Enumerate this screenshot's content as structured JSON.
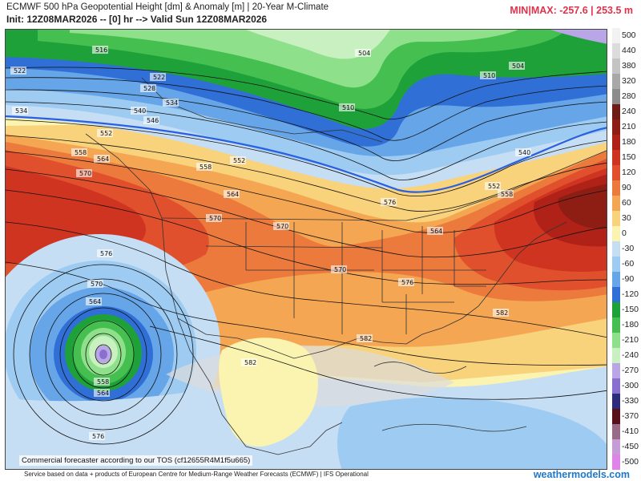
{
  "header": {
    "title": "ECMWF 500 hPa Geopotential Height [dm] & Anomaly [m] | 20-Year M-Climate",
    "subtitle": "Init: 12Z08MAR2026 -- [0] hr --> Valid Sun 12Z08MAR2026",
    "minmax": "MIN|MAX: -257.6 | 253.5 m"
  },
  "legend": [
    {
      "label": "500",
      "color": "#f2f2f2"
    },
    {
      "label": "440",
      "color": "#dcdcdc"
    },
    {
      "label": "380",
      "color": "#c4c4c4"
    },
    {
      "label": "320",
      "color": "#a8a8a8"
    },
    {
      "label": "280",
      "color": "#8c8c8c"
    },
    {
      "label": "240",
      "color": "#6e1c14"
    },
    {
      "label": "210",
      "color": "#8e1d14"
    },
    {
      "label": "180",
      "color": "#b02218"
    },
    {
      "label": "150",
      "color": "#cf3420"
    },
    {
      "label": "120",
      "color": "#e0502c"
    },
    {
      "label": "90",
      "color": "#ec7a3c"
    },
    {
      "label": "60",
      "color": "#f4a652"
    },
    {
      "label": "30",
      "color": "#f9d27c"
    },
    {
      "label": "0",
      "color": "#fbf3b0"
    },
    {
      "label": "-30",
      "color": "#c6def4"
    },
    {
      "label": "-60",
      "color": "#9ecbf2"
    },
    {
      "label": "-90",
      "color": "#66a5e8"
    },
    {
      "label": "-120",
      "color": "#2f6fd6"
    },
    {
      "label": "-150",
      "color": "#1fa13a"
    },
    {
      "label": "-180",
      "color": "#45c050"
    },
    {
      "label": "-210",
      "color": "#8fe08a"
    },
    {
      "label": "-240",
      "color": "#c8f0c0"
    },
    {
      "label": "-270",
      "color": "#b9a6e6"
    },
    {
      "label": "-300",
      "color": "#8a6fd0"
    },
    {
      "label": "-330",
      "color": "#2d2b7a"
    },
    {
      "label": "-370",
      "color": "#5a1018"
    },
    {
      "label": "-410",
      "color": "#9a6b86"
    },
    {
      "label": "-450",
      "color": "#c79bd6"
    },
    {
      "label": "-500",
      "color": "#e083e8"
    }
  ],
  "map": {
    "contour_labels": [
      "516",
      "522",
      "504",
      "504",
      "528",
      "522",
      "534",
      "510",
      "510",
      "534",
      "540",
      "540",
      "546",
      "552",
      "558",
      "552",
      "558",
      "564",
      "570",
      "564",
      "564",
      "570",
      "576",
      "570",
      "552",
      "558",
      "576",
      "570",
      "564",
      "582",
      "558",
      "564",
      "582",
      "576",
      "582",
      "570",
      "576"
    ]
  },
  "copyright": "Commercial forecaster according to our TOS (cf12655R4M1f5u665)",
  "footer": {
    "source": "Service based on data + products of European Centre for Medium-Range Weather Forecasts (ECMWF) | IFS Operational",
    "brand": "weathermodels.com"
  },
  "colors": {
    "height_contour": "#111111",
    "highlight_contour": "#2a5fe0",
    "border_lines": "#333333",
    "minmax_text": "#e0324b",
    "brand_text": "#1e78c8"
  }
}
